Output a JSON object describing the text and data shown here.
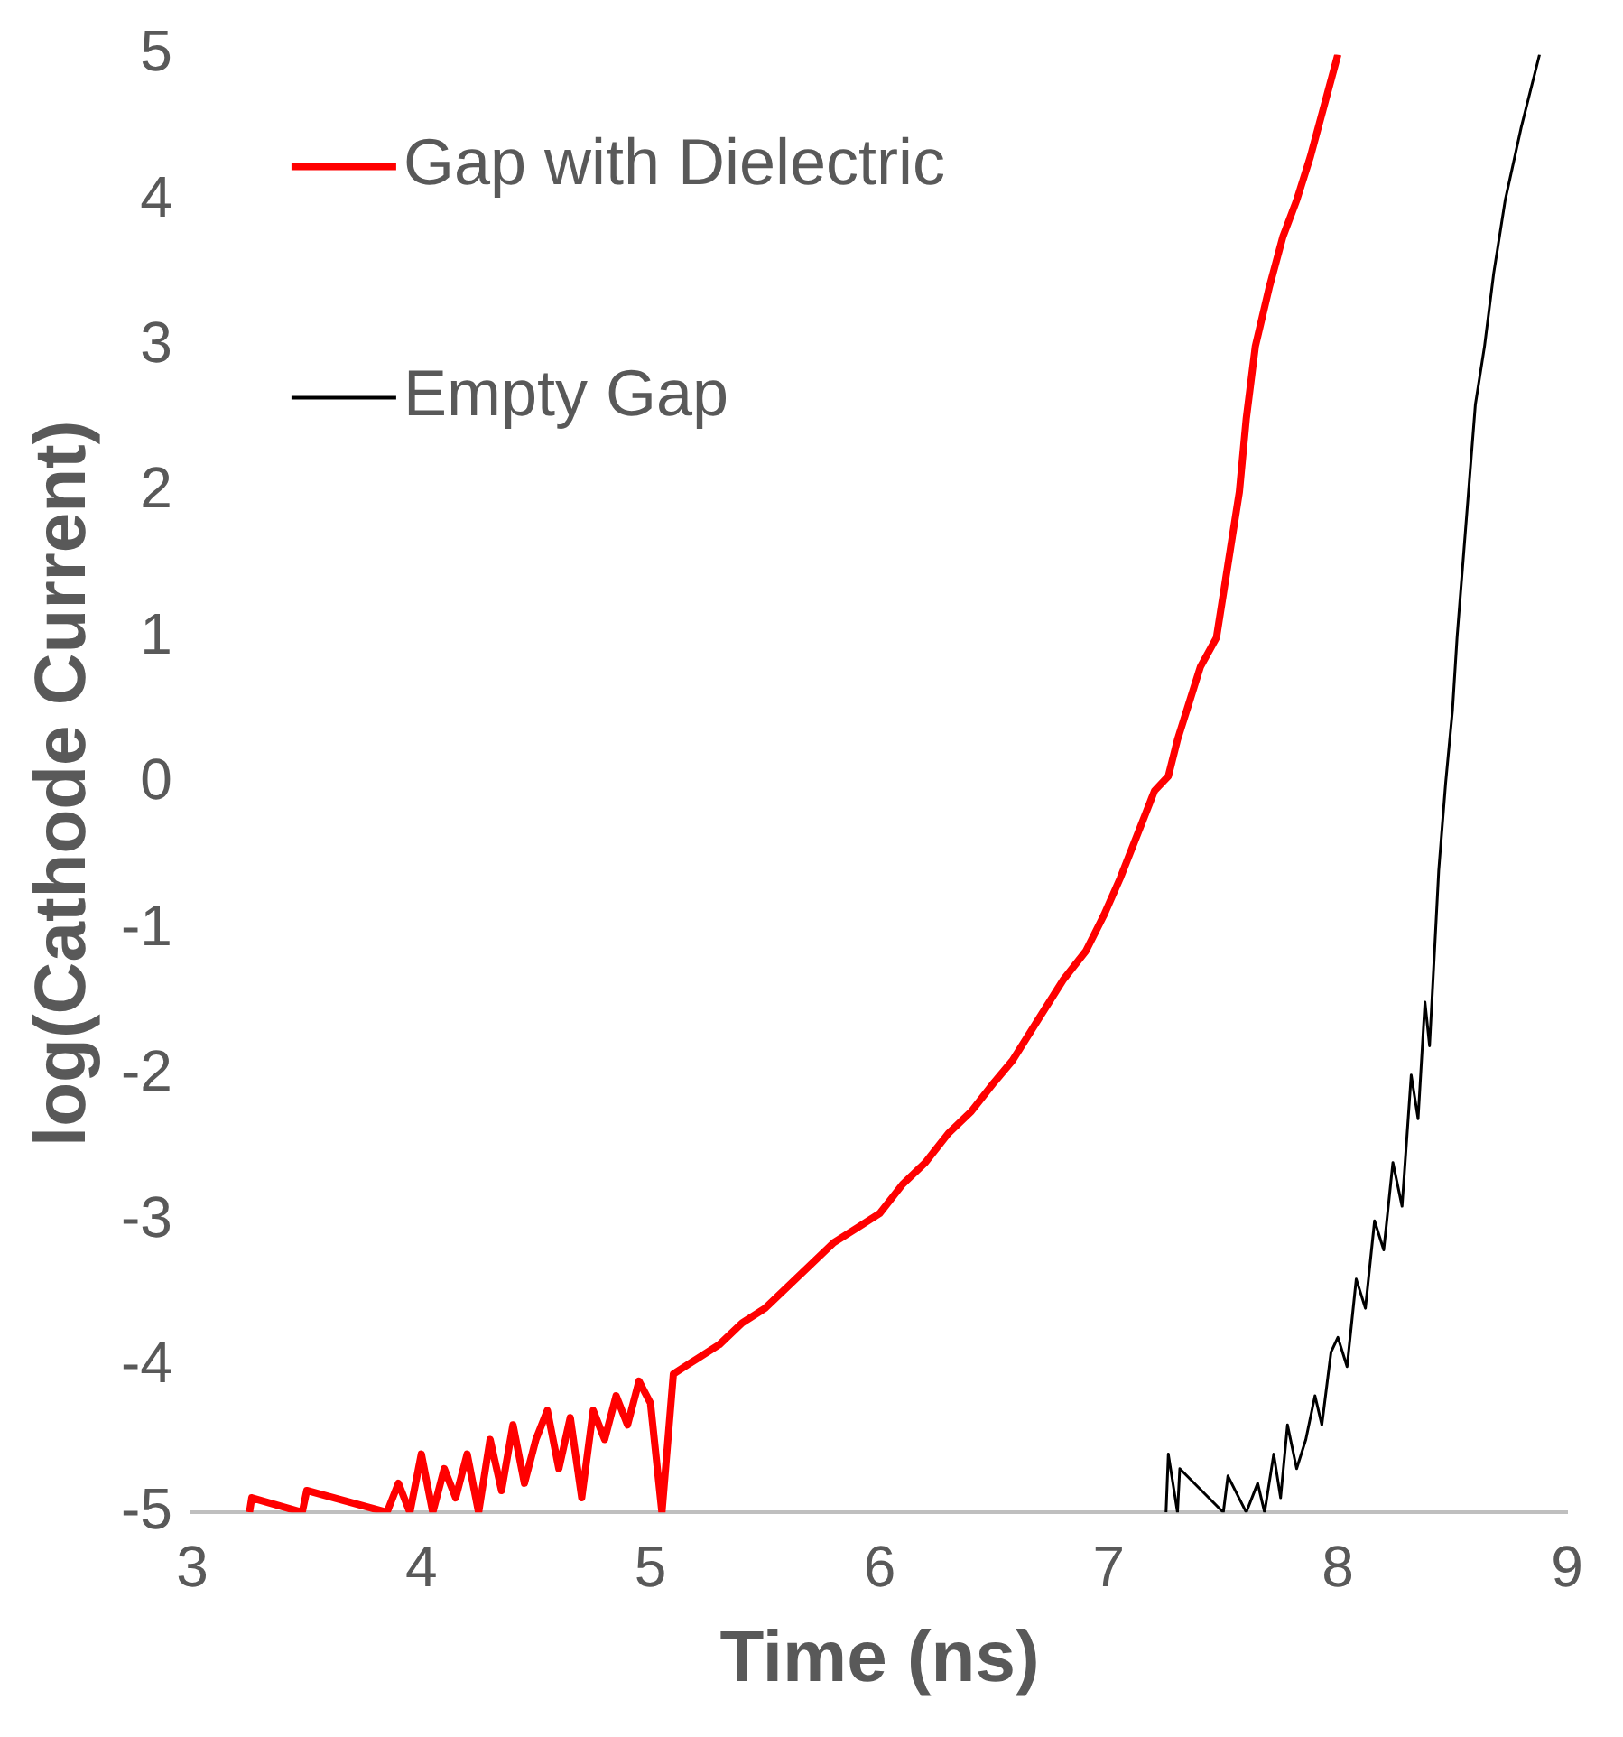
{
  "chart_data": {
    "type": "line",
    "xlabel": "Time (ns)",
    "ylabel": "log(Cathode Current)",
    "xlim": [
      3,
      9
    ],
    "xticks": [
      3,
      4,
      5,
      6,
      7,
      8,
      9
    ],
    "ylim": [
      -5,
      5
    ],
    "yticks": [
      -5,
      -4,
      -3,
      -2,
      -1,
      0,
      1,
      2,
      3,
      4,
      5
    ],
    "grid": false,
    "legend": "top left",
    "marker": "none",
    "line_style": "solid",
    "series": [
      {
        "name": "Gap with Dielectric",
        "color": "#ff0000",
        "x": [
          3.25,
          3.26,
          3.48,
          3.5,
          3.85,
          3.9,
          3.95,
          4.0,
          4.05,
          4.1,
          4.15,
          4.2,
          4.25,
          4.3,
          4.35,
          4.4,
          4.45,
          4.5,
          4.55,
          4.6,
          4.65,
          4.7,
          4.75,
          4.8,
          4.85,
          4.9,
          4.95,
          5.0,
          5.05,
          5.1,
          5.2,
          5.3,
          5.4,
          5.5,
          5.6,
          5.7,
          5.8,
          5.9,
          6.0,
          6.1,
          6.2,
          6.3,
          6.4,
          6.5,
          6.58,
          6.7,
          6.8,
          6.9,
          6.98,
          7.05,
          7.1,
          7.15,
          7.2,
          7.26,
          7.3,
          7.35,
          7.4,
          7.47,
          7.52,
          7.57,
          7.6,
          7.64,
          7.7,
          7.76,
          7.82,
          7.88,
          7.94,
          8.0
        ],
        "values": [
          -5,
          -4.9,
          -5,
          -4.85,
          -5,
          -4.8,
          -5,
          -4.6,
          -5,
          -4.7,
          -4.9,
          -4.6,
          -5,
          -4.5,
          -4.85,
          -4.4,
          -4.8,
          -4.5,
          -4.3,
          -4.7,
          -4.35,
          -4.9,
          -4.3,
          -4.5,
          -4.2,
          -4.4,
          -4.1,
          -4.25,
          -5,
          -4.05,
          -3.95,
          -3.85,
          -3.7,
          -3.6,
          -3.45,
          -3.3,
          -3.15,
          -3.05,
          -2.95,
          -2.75,
          -2.6,
          -2.4,
          -2.25,
          -2.05,
          -1.9,
          -1.6,
          -1.35,
          -1.15,
          -0.9,
          -0.65,
          -0.45,
          -0.25,
          -0.05,
          0.05,
          0.3,
          0.55,
          0.8,
          1.0,
          1.5,
          2.0,
          2.5,
          3.0,
          3.4,
          3.75,
          4.0,
          4.3,
          4.65,
          5.0
        ]
      },
      {
        "name": "Empty Gap",
        "color": "#000000",
        "x": [
          7.25,
          7.26,
          7.3,
          7.31,
          7.5,
          7.52,
          7.6,
          7.65,
          7.68,
          7.72,
          7.75,
          7.78,
          7.82,
          7.86,
          7.9,
          7.93,
          7.97,
          8.0,
          8.04,
          8.08,
          8.12,
          8.16,
          8.2,
          8.24,
          8.28,
          8.32,
          8.35,
          8.38,
          8.4,
          8.42,
          8.44,
          8.47,
          8.5,
          8.52,
          8.55,
          8.57,
          8.6,
          8.64,
          8.68,
          8.73,
          8.8,
          8.88
        ],
        "values": [
          -5,
          -4.6,
          -5,
          -4.7,
          -5,
          -4.75,
          -5,
          -4.8,
          -5,
          -4.6,
          -4.9,
          -4.4,
          -4.7,
          -4.5,
          -4.2,
          -4.4,
          -3.9,
          -3.8,
          -4.0,
          -3.4,
          -3.6,
          -3.0,
          -3.2,
          -2.6,
          -2.9,
          -2.0,
          -2.3,
          -1.5,
          -1.8,
          -1.2,
          -0.6,
          0.0,
          0.5,
          1.0,
          1.6,
          2.0,
          2.6,
          3.0,
          3.5,
          4.0,
          4.5,
          5.0
        ]
      }
    ]
  }
}
